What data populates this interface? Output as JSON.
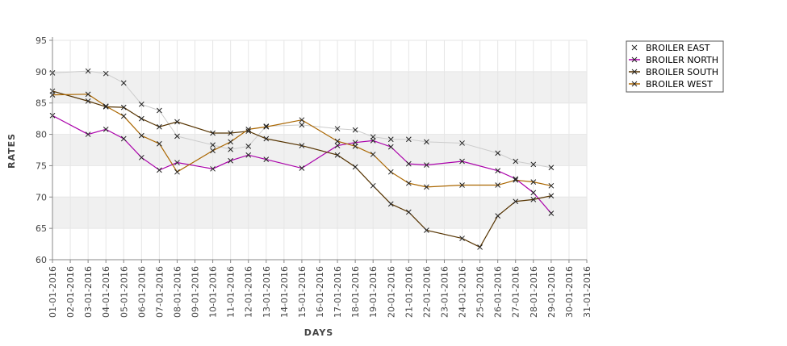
{
  "chart_data": {
    "type": "line",
    "xlabel": "DAYS",
    "ylabel": "RATES",
    "ylim": [
      60,
      95
    ],
    "yticks": [
      60,
      65,
      70,
      75,
      80,
      85,
      90,
      95
    ],
    "categories": [
      "01-01-2016",
      "02-01-2016",
      "03-01-2016",
      "04-01-2016",
      "05-01-2016",
      "06-01-2016",
      "07-01-2016",
      "08-01-2016",
      "09-01-2016",
      "10-01-2016",
      "11-01-2016",
      "12-01-2016",
      "13-01-2016",
      "14-01-2016",
      "15-01-2016",
      "16-01-2016",
      "17-01-2016",
      "18-01-2016",
      "19-01-2016",
      "20-01-2016",
      "21-01-2016",
      "22-01-2016",
      "23-01-2016",
      "24-01-2016",
      "25-01-2016",
      "26-01-2016",
      "27-01-2016",
      "28-01-2016",
      "29-01-2016",
      "30-01-2016",
      "31-01-2016"
    ],
    "grid": "alternating horizontal bands",
    "legend_position": "top-right",
    "series": [
      {
        "name": "BROILER EAST",
        "color": "#cccccc",
        "points": [
          [
            1,
            89.8
          ],
          [
            3,
            90.1
          ],
          [
            4,
            89.7
          ],
          [
            5,
            88.2
          ],
          [
            6,
            84.8
          ],
          [
            7,
            83.8
          ],
          [
            8,
            79.7
          ],
          [
            10,
            78.3
          ],
          [
            11,
            77.6
          ],
          [
            12,
            78.1
          ],
          [
            13,
            81.3
          ],
          [
            15,
            81.5
          ],
          [
            17,
            80.9
          ],
          [
            18,
            80.7
          ],
          [
            19,
            79.6
          ],
          [
            20,
            79.2
          ],
          [
            21,
            79.2
          ],
          [
            22,
            78.8
          ],
          [
            24,
            78.6
          ],
          [
            26,
            77.0
          ],
          [
            27,
            75.7
          ],
          [
            28,
            75.2
          ],
          [
            29,
            74.7
          ]
        ]
      },
      {
        "name": "BROILER NORTH",
        "color": "#aa00aa",
        "points": [
          [
            1,
            83.0
          ],
          [
            3,
            80.0
          ],
          [
            4,
            80.8
          ],
          [
            5,
            79.3
          ],
          [
            6,
            76.3
          ],
          [
            7,
            74.3
          ],
          [
            8,
            75.5
          ],
          [
            10,
            74.5
          ],
          [
            11,
            75.8
          ],
          [
            12,
            76.7
          ],
          [
            13,
            76.0
          ],
          [
            15,
            74.6
          ],
          [
            17,
            78.2
          ],
          [
            18,
            78.7
          ],
          [
            19,
            79.0
          ],
          [
            20,
            78.0
          ],
          [
            21,
            75.3
          ],
          [
            22,
            75.1
          ],
          [
            24,
            75.7
          ],
          [
            26,
            74.2
          ],
          [
            27,
            72.9
          ],
          [
            28,
            70.7
          ],
          [
            29,
            67.4
          ]
        ]
      },
      {
        "name": "BROILER SOUTH",
        "color": "#553300",
        "points": [
          [
            1,
            86.9
          ],
          [
            3,
            85.3
          ],
          [
            4,
            84.4
          ],
          [
            5,
            84.3
          ],
          [
            6,
            82.5
          ],
          [
            7,
            81.2
          ],
          [
            8,
            82.0
          ],
          [
            10,
            80.2
          ],
          [
            11,
            80.2
          ],
          [
            12,
            80.5
          ],
          [
            13,
            79.3
          ],
          [
            15,
            78.2
          ],
          [
            17,
            76.7
          ],
          [
            18,
            74.8
          ],
          [
            19,
            71.8
          ],
          [
            20,
            68.9
          ],
          [
            21,
            67.6
          ],
          [
            22,
            64.7
          ],
          [
            24,
            63.4
          ],
          [
            25,
            62.0
          ],
          [
            26,
            67.0
          ],
          [
            27,
            69.3
          ],
          [
            28,
            69.6
          ],
          [
            29,
            70.2
          ]
        ]
      },
      {
        "name": "BROILER WEST",
        "color": "#aa6600",
        "points": [
          [
            1,
            86.3
          ],
          [
            3,
            86.4
          ],
          [
            4,
            84.5
          ],
          [
            5,
            82.9
          ],
          [
            6,
            79.8
          ],
          [
            7,
            78.5
          ],
          [
            8,
            74.0
          ],
          [
            10,
            77.4
          ],
          [
            11,
            78.8
          ],
          [
            12,
            80.8
          ],
          [
            13,
            81.2
          ],
          [
            15,
            82.3
          ],
          [
            17,
            78.9
          ],
          [
            18,
            78.1
          ],
          [
            19,
            76.8
          ],
          [
            20,
            74.0
          ],
          [
            21,
            72.2
          ],
          [
            22,
            71.6
          ],
          [
            24,
            71.9
          ],
          [
            26,
            71.9
          ],
          [
            27,
            72.7
          ],
          [
            28,
            72.4
          ],
          [
            29,
            71.8
          ]
        ]
      }
    ]
  }
}
